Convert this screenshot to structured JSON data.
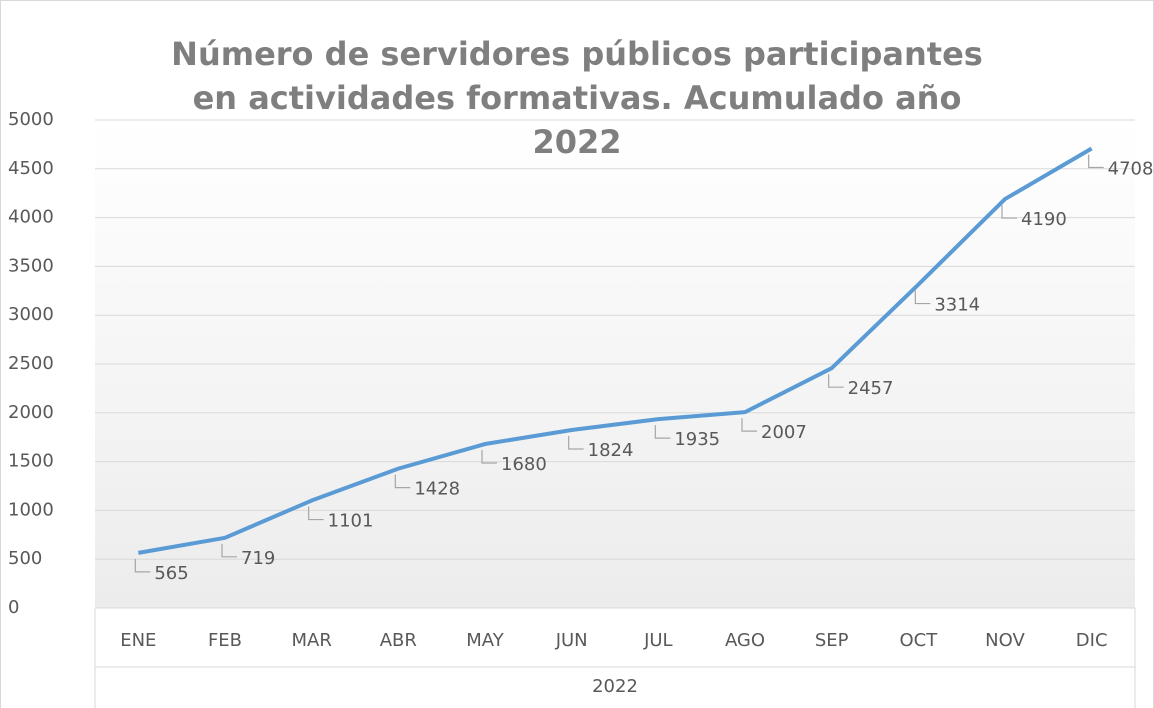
{
  "chart_data": {
    "type": "line",
    "title": "Número de servidores públicos participantes en actividades formativas. Acumulado año 2022",
    "xlabel": "2022",
    "categories": [
      "ENE",
      "FEB",
      "MAR",
      "ABR",
      "MAY",
      "JUN",
      "JUL",
      "AGO",
      "SEP",
      "OCT",
      "NOV",
      "DIC"
    ],
    "series": [
      {
        "name": "2022",
        "color": "#5b9bd5",
        "values": [
          565,
          719,
          1101,
          1428,
          1680,
          1824,
          1935,
          2007,
          2457,
          3314,
          4190,
          4708
        ]
      }
    ],
    "ylim": [
      0,
      5000
    ],
    "yticks": [
      0,
      500,
      1000,
      1500,
      2000,
      2500,
      3000,
      3500,
      4000,
      4500,
      5000
    ],
    "grid": true
  }
}
